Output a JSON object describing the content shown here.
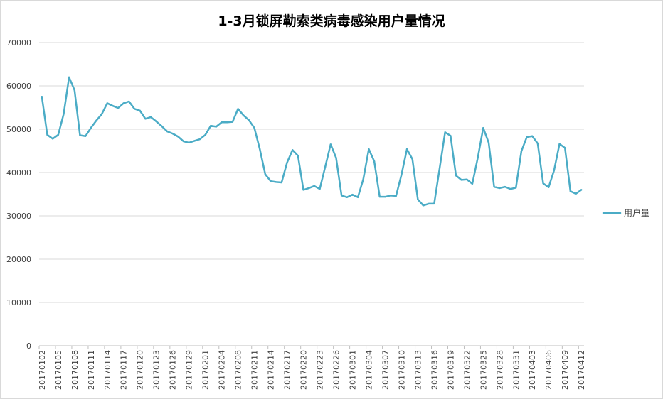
{
  "chart_data": {
    "type": "line",
    "title": "1-3月锁屏勒索类病毒感染用户量情况",
    "xlabel": "",
    "ylabel": "",
    "ylim": [
      0,
      70000
    ],
    "y_ticks": [
      0,
      10000,
      20000,
      30000,
      40000,
      50000,
      60000,
      70000
    ],
    "x_tick_labels": [
      "20170102",
      "20170105",
      "20170108",
      "20170111",
      "20170114",
      "20170117",
      "20170120",
      "20170123",
      "20170126",
      "20170129",
      "20170201",
      "20170204",
      "20170208",
      "20170211",
      "20170214",
      "20170217",
      "20170220",
      "20170223",
      "20170226",
      "20170301",
      "20170304",
      "20170307",
      "20170310",
      "20170313",
      "20170316",
      "20170319",
      "20170322",
      "20170325",
      "20170328",
      "20170331",
      "20170403",
      "20170406",
      "20170409",
      "20170412"
    ],
    "series": [
      {
        "name": "用户量",
        "color": "#4BACC6",
        "values": [
          57500,
          48700,
          47800,
          48700,
          53500,
          62000,
          59000,
          48600,
          48400,
          50300,
          52000,
          53500,
          56000,
          55400,
          54900,
          56000,
          56400,
          54700,
          54300,
          52400,
          52800,
          51800,
          50700,
          49500,
          49000,
          48300,
          47200,
          46900,
          47300,
          47700,
          48700,
          50800,
          50600,
          51600,
          51600,
          51700,
          54700,
          53200,
          52100,
          50300,
          45400,
          39600,
          38000,
          37800,
          37700,
          42300,
          45200,
          43900,
          36000,
          36400,
          36900,
          36200,
          41300,
          46500,
          43400,
          34700,
          34300,
          34900,
          34300,
          38500,
          45400,
          42600,
          34400,
          34400,
          34700,
          34600,
          39500,
          45400,
          43100,
          33800,
          32400,
          32800,
          32800,
          41000,
          49300,
          48500,
          39300,
          38300,
          38400,
          37400,
          43400,
          50300,
          46900,
          36700,
          36400,
          36700,
          36200,
          36500,
          44900,
          48200,
          48400,
          46700,
          37500,
          36600,
          40500,
          46600,
          45700,
          35700,
          35100,
          36000
        ]
      }
    ],
    "grid": "horizontal",
    "legend": "right"
  }
}
